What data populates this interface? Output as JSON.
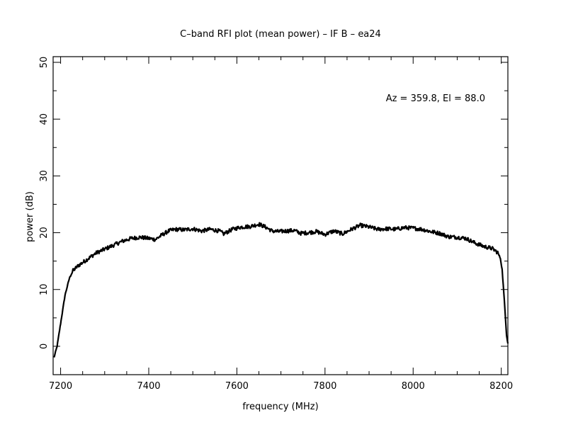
{
  "chart_data": {
    "type": "line",
    "title": "C–band RFI plot (mean power) – IF B – ea24",
    "xlabel": "frequency (MHz)",
    "ylabel": "power (dB)",
    "annotation": "Az = 359.8, El = 88.0",
    "xlim": [
      7183,
      8215
    ],
    "ylim": [
      -5,
      51
    ],
    "xticks_major": [
      7200,
      7400,
      7600,
      7800,
      8000,
      8200
    ],
    "xtick_labels": [
      "7200",
      "7400",
      "7600",
      "7800",
      "8000",
      "8200"
    ],
    "yticks_major": [
      0,
      10,
      20,
      30,
      40,
      50
    ],
    "ytick_labels": [
      "0",
      "10",
      "20",
      "30",
      "40",
      "50"
    ],
    "grid": false,
    "line_color": "#000000",
    "series": [
      {
        "x": [
          7185,
          7192,
          7200,
          7210,
          7220,
          7228,
          7240,
          7260,
          7280,
          7300,
          7320,
          7340,
          7360,
          7380,
          7400,
          7415,
          7430,
          7445,
          7460,
          7480,
          7500,
          7520,
          7540,
          7560,
          7570,
          7590,
          7610,
          7630,
          7650,
          7665,
          7680,
          7695,
          7710,
          7730,
          7745,
          7760,
          7780,
          7800,
          7820,
          7840,
          7860,
          7880,
          7900,
          7920,
          7940,
          7960,
          7980,
          8000,
          8020,
          8040,
          8060,
          8080,
          8100,
          8120,
          8140,
          8160,
          8180,
          8192,
          8198,
          8202,
          8207,
          8212,
          8215
        ],
        "y": [
          -2,
          0,
          4,
          9,
          12,
          13.3,
          14.2,
          15.3,
          16.4,
          17.1,
          17.8,
          18.5,
          19.0,
          19.2,
          19.0,
          18.8,
          19.6,
          20.3,
          20.6,
          20.5,
          20.7,
          20.3,
          20.6,
          20.3,
          19.8,
          20.6,
          21.0,
          21.1,
          21.5,
          21.0,
          20.3,
          20.2,
          20.3,
          20.4,
          19.9,
          20.0,
          20.2,
          19.7,
          20.3,
          19.8,
          20.6,
          21.3,
          21.0,
          20.6,
          20.7,
          20.6,
          20.9,
          20.8,
          20.6,
          20.2,
          19.9,
          19.3,
          19.2,
          19.0,
          18.2,
          17.6,
          17.2,
          16.5,
          15.5,
          13.5,
          8,
          2,
          0.5
        ]
      }
    ]
  }
}
